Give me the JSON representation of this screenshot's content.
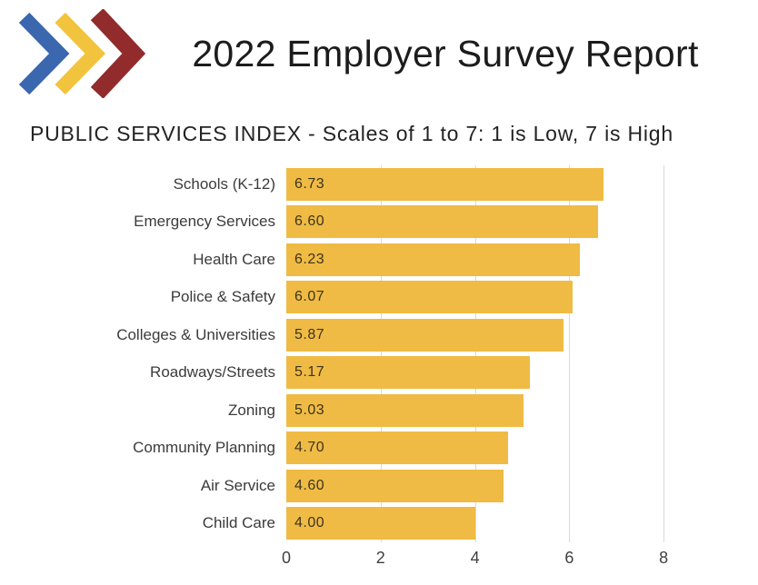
{
  "header": {
    "title": "2022 Employer Survey Report",
    "logo": {
      "description": "triple-chevron-logo",
      "colors": [
        "#3a67ae",
        "#f2c33c",
        "#922b2b"
      ]
    }
  },
  "chart_data": {
    "type": "bar",
    "orientation": "horizontal",
    "title": "PUBLIC SERVICES INDEX - Scales of 1 to 7: 1 is Low, 7 is High",
    "categories": [
      "Schools (K-12)",
      "Emergency Services",
      "Health Care",
      "Police & Safety",
      "Colleges & Universities",
      "Roadways/Streets",
      "Zoning",
      "Community Planning",
      "Air Service",
      "Child Care"
    ],
    "values": [
      6.73,
      6.6,
      6.23,
      6.07,
      5.87,
      5.17,
      5.03,
      4.7,
      4.6,
      4.0
    ],
    "value_labels": [
      "6.73",
      "6.60",
      "6.23",
      "6.07",
      "5.87",
      "5.17",
      "5.03",
      "4.70",
      "4.60",
      "4.00"
    ],
    "xlabel": "",
    "ylabel": "",
    "xlim": [
      0,
      10
    ],
    "xticks": [
      0,
      2,
      4,
      6,
      8
    ],
    "bar_color": "#efbb44",
    "gridline_color": "#d9d9d9",
    "grid": true,
    "legend": false,
    "value_label_position": "inside-left"
  }
}
